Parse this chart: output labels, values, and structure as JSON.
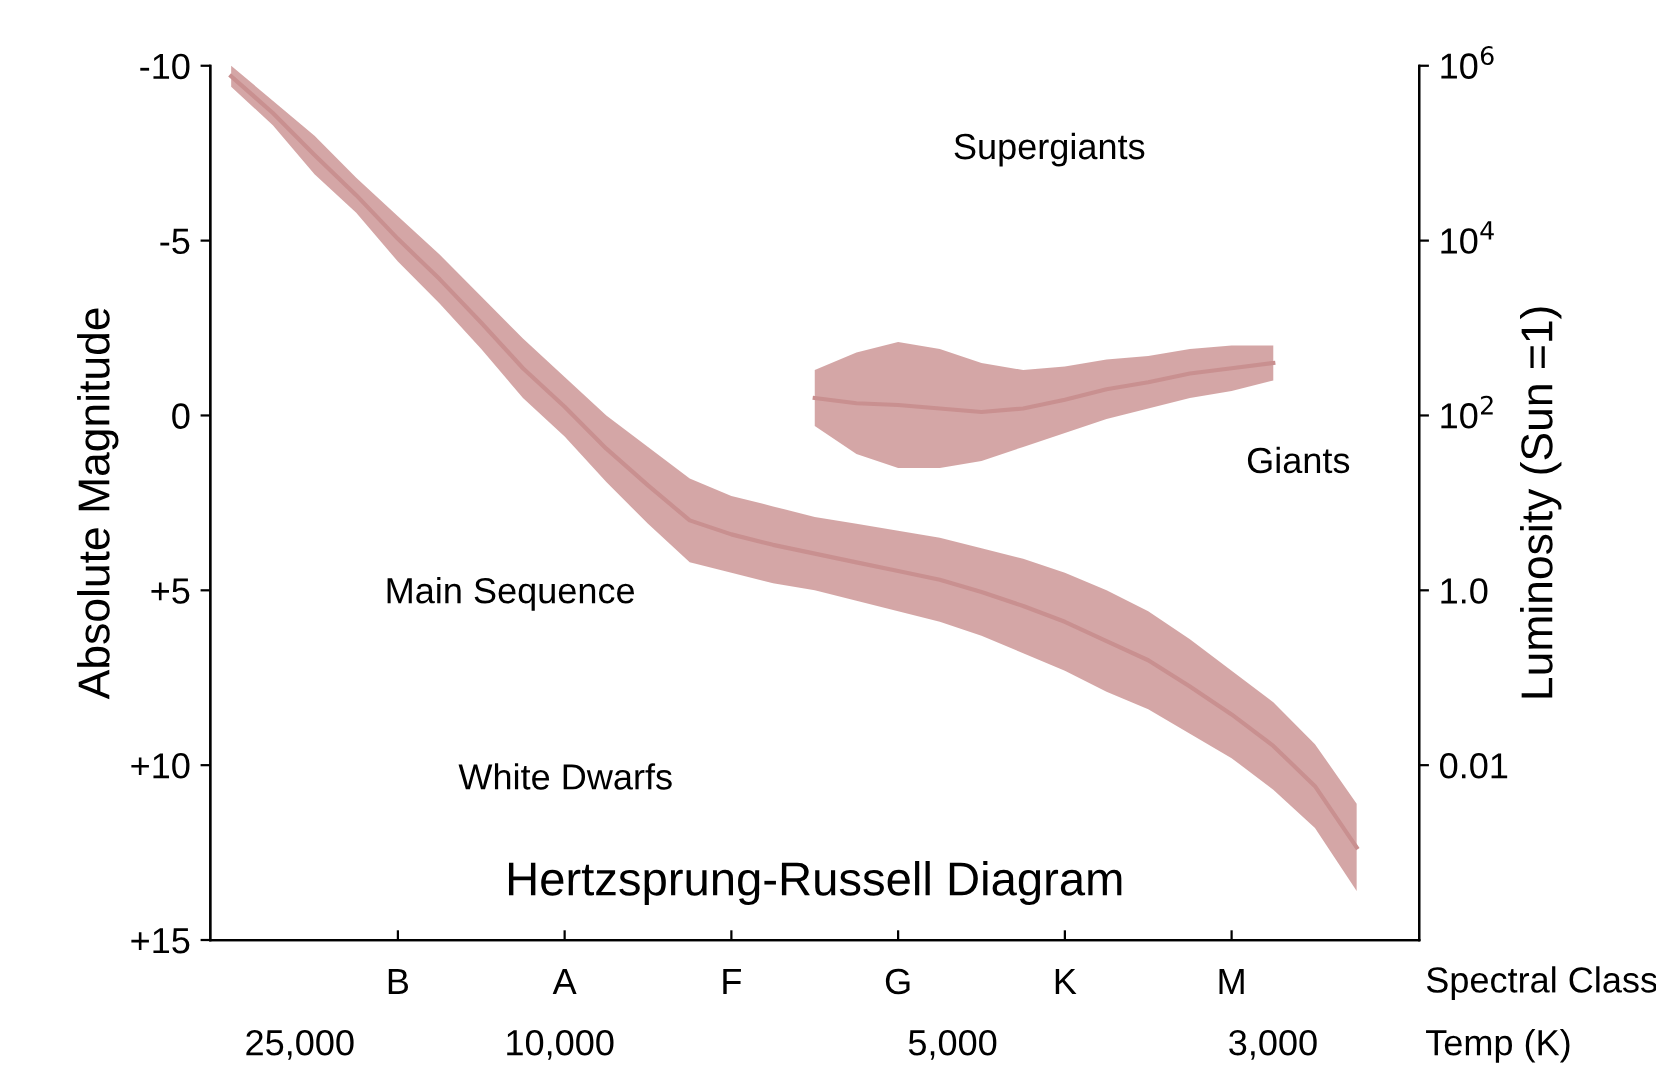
{
  "chart_data": {
    "type": "line",
    "title": "Hertzsprung-Russell Diagram",
    "xlabel": "Spectral Class",
    "ylabel": "Absolute Magnitude",
    "y2label": "Luminosity (Sun =1)",
    "categories": [
      null,
      null,
      null,
      null,
      "B",
      null,
      null,
      null,
      "A",
      null,
      null,
      null,
      "F",
      null,
      null,
      null,
      "G",
      null,
      null,
      null,
      "K",
      null,
      null,
      null,
      "M",
      null,
      null,
      null,
      null
    ],
    "ylim": [
      15,
      -10
    ],
    "yticks": [
      -10,
      -5,
      0,
      {
        "value": 5,
        "label": "+5"
      },
      {
        "value": 10,
        "label": "+10"
      },
      {
        "value": 15,
        "label": "+15"
      }
    ],
    "y2lim": [
      0.0001,
      1000000
    ],
    "y2ticks": [
      {
        "value": 1000000,
        "label": "10$^{6}$"
      },
      {
        "value": 10000,
        "label": "10$^{4}$"
      },
      {
        "value": 100,
        "label": "10$^{2}$"
      },
      {
        "value": 1,
        "label": "1.0"
      },
      {
        "value": 0.01,
        "label": "0.01"
      }
    ],
    "log": "y2",
    "grid": false,
    "legend": false,
    "series": [
      {
        "color": "#c99090",
        "values": [
          -9.7,
          -8.65,
          -7.45,
          -6.3,
          -5.05,
          -3.9,
          -2.65,
          -1.35,
          -0.25,
          0.95,
          2.0,
          3.0,
          3.4,
          3.7,
          3.95,
          4.2,
          4.45,
          4.7,
          5.05,
          5.45,
          5.9,
          6.45,
          7.0,
          7.75,
          8.55,
          9.45,
          10.6,
          12.35,
          null
        ],
        "lower": [
          -10,
          -9.0,
          -8.0,
          -6.8,
          -5.7,
          -4.6,
          -3.4,
          -2.2,
          -1.1,
          0,
          0.9,
          1.8,
          2.3,
          2.6,
          2.9,
          3.1,
          3.3,
          3.5,
          3.8,
          4.1,
          4.5,
          5.0,
          5.6,
          6.4,
          7.3,
          8.2,
          9.4,
          11.1,
          null
        ],
        "upper": [
          -9.4,
          -8.3,
          -6.9,
          -5.8,
          -4.4,
          -3.2,
          -1.9,
          -0.5,
          0.6,
          1.9,
          3.1,
          4.2,
          4.5,
          4.8,
          5.0,
          5.3,
          5.6,
          5.9,
          6.3,
          6.8,
          7.3,
          7.9,
          8.4,
          9.1,
          9.8,
          10.7,
          11.8,
          13.6,
          null
        ]
      },
      {
        "color": "#c99090",
        "values": [
          null,
          null,
          null,
          null,
          null,
          null,
          null,
          null,
          null,
          null,
          null,
          null,
          null,
          null,
          -0.5,
          -0.35,
          -0.3,
          -0.2,
          -0.1,
          -0.2,
          -0.45,
          -0.75,
          -0.95,
          -1.2,
          -1.35,
          -1.5,
          null,
          null,
          null
        ],
        "lower": [
          null,
          null,
          null,
          null,
          null,
          null,
          null,
          null,
          null,
          null,
          null,
          null,
          null,
          null,
          -1.3,
          -1.8,
          -2.1,
          -1.9,
          -1.5,
          -1.3,
          -1.4,
          -1.6,
          -1.7,
          -1.9,
          -2.0,
          -2.0,
          null,
          null,
          null
        ],
        "upper": [
          null,
          null,
          null,
          null,
          null,
          null,
          null,
          null,
          null,
          null,
          null,
          null,
          null,
          null,
          0.3,
          1.1,
          1.5,
          1.5,
          1.3,
          0.9,
          0.5,
          0.1,
          -0.2,
          -0.5,
          -0.7,
          -1.0,
          null,
          null,
          null
        ]
      }
    ],
    "annotations": [
      "Supergiants",
      "Giants",
      "Main Sequence",
      "White Dwarfs",
      "Temp (K)",
      "25,000",
      "10,000",
      "5,000",
      "3,000"
    ]
  }
}
